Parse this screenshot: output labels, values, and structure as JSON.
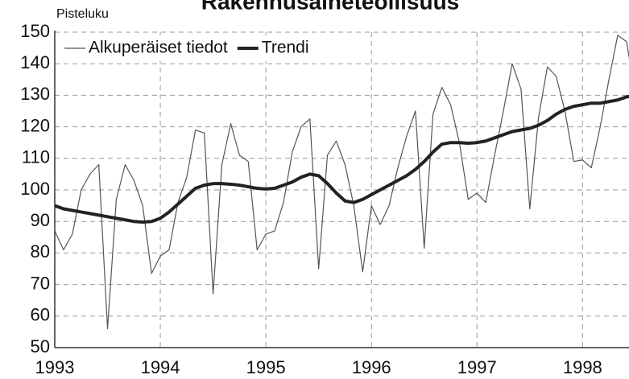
{
  "chart_data": {
    "type": "line",
    "title": "Rakennusaineteollisuus",
    "y_label": "Pisteluku",
    "x": [
      1993,
      1993.083,
      1993.167,
      1993.25,
      1993.333,
      1993.417,
      1993.5,
      1993.583,
      1993.667,
      1993.75,
      1993.833,
      1993.917,
      1994,
      1994.083,
      1994.167,
      1994.25,
      1994.333,
      1994.417,
      1994.5,
      1994.583,
      1994.667,
      1994.75,
      1994.833,
      1994.917,
      1995,
      1995.083,
      1995.167,
      1995.25,
      1995.333,
      1995.417,
      1995.5,
      1995.583,
      1995.667,
      1995.75,
      1995.833,
      1995.917,
      1996,
      1996.083,
      1996.167,
      1996.25,
      1996.333,
      1996.417,
      1996.5,
      1996.583,
      1996.667,
      1996.75,
      1996.833,
      1996.917,
      1997,
      1997.083,
      1997.167,
      1997.25,
      1997.333,
      1997.417,
      1997.5,
      1997.583,
      1997.667,
      1997.75,
      1997.833,
      1997.917,
      1998,
      1998.083,
      1998.167,
      1998.25,
      1998.333,
      1998.417,
      1998.5
    ],
    "series": [
      {
        "name": "Alkuperäiset tiedot",
        "color": "#555555",
        "width": 1.2,
        "values": [
          87,
          81,
          86,
          100,
          105,
          108,
          56,
          97,
          108,
          103,
          95,
          73.5,
          79,
          81,
          96,
          104,
          119,
          118,
          67,
          108,
          121,
          111,
          109,
          81,
          86,
          87,
          96,
          112,
          120,
          122.5,
          75,
          111,
          115.5,
          108,
          95,
          74,
          95,
          89,
          95,
          107,
          117,
          125,
          81.5,
          124,
          132.5,
          127,
          115,
          97,
          99,
          96,
          111,
          125,
          140,
          132,
          94,
          123,
          139,
          136,
          125,
          109,
          109.5,
          107,
          120,
          135,
          149,
          147,
          130
        ]
      },
      {
        "name": "Trendi",
        "color": "#222222",
        "width": 4,
        "values": [
          95,
          94,
          93.5,
          93,
          92.5,
          92,
          91.5,
          91,
          90.5,
          90,
          89.8,
          90,
          91,
          93,
          95.5,
          98,
          100.5,
          101.5,
          102,
          102,
          101.8,
          101.5,
          101,
          100.5,
          100.3,
          100.5,
          101.5,
          102.5,
          104,
          105,
          104.5,
          102,
          99,
          96.5,
          96,
          97,
          98.5,
          100,
          101.5,
          103,
          104.5,
          106.5,
          109,
          112,
          114.5,
          115,
          115,
          114.8,
          115,
          115.5,
          116.5,
          117.5,
          118.5,
          119,
          119.5,
          120.5,
          122,
          124,
          125.5,
          126.5,
          127,
          127.5,
          127.5,
          128,
          128.5,
          129.5,
          130
        ]
      }
    ],
    "xlim": [
      1993,
      1998.44
    ],
    "xticks": [
      1993,
      1994,
      1995,
      1996,
      1997,
      1998
    ],
    "ylim": [
      50,
      150
    ],
    "yticks": [
      50,
      60,
      70,
      80,
      90,
      100,
      110,
      120,
      130,
      140,
      150
    ],
    "grid": true,
    "legend": "top-left"
  }
}
